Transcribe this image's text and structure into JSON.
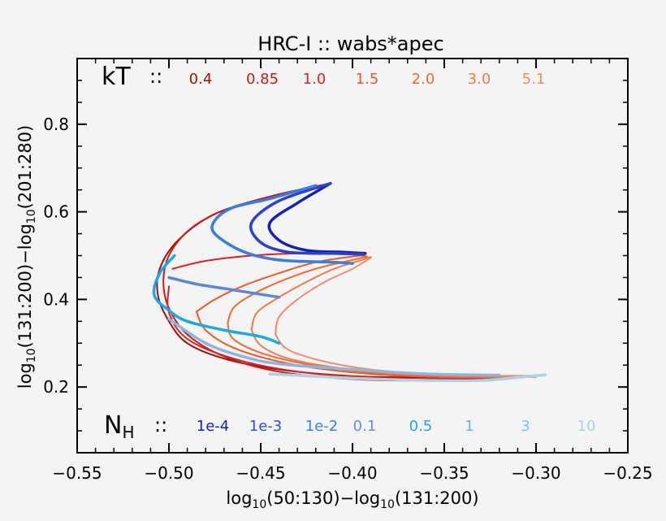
{
  "chart_data": {
    "type": "line",
    "title": "HRC-I :: wabs*apec",
    "xlabel": {
      "p1": "log",
      "s1": "10",
      "p2": "(50:130)−log",
      "s2": "10",
      "p3": "(131:200)"
    },
    "ylabel": {
      "p1": "log",
      "s1": "10",
      "p2": "(131:200)−log",
      "s2": "10",
      "p3": "(201:280)"
    },
    "xlim": [
      -0.55,
      -0.25
    ],
    "ylim": [
      0.05,
      0.95
    ],
    "x_ticks": [
      "−0.55",
      "−0.50",
      "−0.45",
      "−0.40",
      "−0.35",
      "−0.30",
      "−0.25"
    ],
    "y_ticks": [
      "0.2",
      "0.4",
      "0.6",
      "0.8"
    ],
    "grid": false,
    "legend_kT": {
      "prefix": "kT",
      "sep": "::",
      "entries": [
        {
          "label": "0.4",
          "color": "#9b0f0f"
        },
        {
          "label": "0.85",
          "color": "#c81919"
        },
        {
          "label": "1.0",
          "color": "#e01f1f"
        },
        {
          "label": "1.5",
          "color": "#ee5a22"
        },
        {
          "label": "2.0",
          "color": "#f06a30"
        },
        {
          "label": "3.0",
          "color": "#f07a4a"
        },
        {
          "label": "5.1",
          "color": "#f48a6a"
        }
      ]
    },
    "legend_NH": {
      "prefix": "N",
      "prefix_sub": "H",
      "sep": "::",
      "entries": [
        {
          "label": "1e-4",
          "color": "#1422b4"
        },
        {
          "label": "1e-3",
          "color": "#3050d8"
        },
        {
          "label": "1e-2",
          "color": "#3a7ce0"
        },
        {
          "label": "0.1",
          "color": "#6a8cdc"
        },
        {
          "label": "0.5",
          "color": "#1aa8e8"
        },
        {
          "label": "1",
          "color": "#5ab4ec"
        },
        {
          "label": "3",
          "color": "#7cc4ec"
        },
        {
          "label": "10",
          "color": "#a8d4e8"
        }
      ]
    },
    "series_kT": [
      {
        "color": "#9b0f0f",
        "width": 2,
        "points": [
          [
            -0.412,
            0.665
          ],
          [
            -0.445,
            0.635
          ],
          [
            -0.475,
            0.595
          ],
          [
            -0.495,
            0.535
          ],
          [
            -0.505,
            0.47
          ],
          [
            -0.506,
            0.41
          ],
          [
            -0.5,
            0.35
          ],
          [
            -0.49,
            0.3
          ],
          [
            -0.47,
            0.265
          ],
          [
            -0.44,
            0.24
          ],
          [
            -0.4,
            0.225
          ],
          [
            -0.36,
            0.222
          ],
          [
            -0.33,
            0.223
          ]
        ]
      },
      {
        "color": "#c81919",
        "width": 2,
        "points": [
          [
            -0.412,
            0.665
          ],
          [
            -0.44,
            0.64
          ],
          [
            -0.46,
            0.615
          ],
          [
            -0.475,
            0.595
          ],
          [
            -0.49,
            0.555
          ],
          [
            -0.5,
            0.5
          ],
          [
            -0.503,
            0.44
          ],
          [
            -0.5,
            0.38
          ],
          [
            -0.49,
            0.32
          ],
          [
            -0.47,
            0.27
          ],
          [
            -0.44,
            0.235
          ],
          [
            -0.4,
            0.218
          ],
          [
            -0.36,
            0.215
          ],
          [
            -0.33,
            0.22
          ]
        ]
      },
      {
        "color": "#e01f1f",
        "width": 2,
        "points": [
          [
            -0.498,
            0.47
          ],
          [
            -0.48,
            0.488
          ],
          [
            -0.455,
            0.5
          ],
          [
            -0.43,
            0.505
          ],
          [
            -0.405,
            0.505
          ],
          [
            -0.395,
            0.5
          ]
        ]
      },
      {
        "color": "#e01f1f",
        "width": 2,
        "points": [
          [
            -0.5,
            0.43
          ],
          [
            -0.5,
            0.37
          ],
          [
            -0.49,
            0.31
          ],
          [
            -0.465,
            0.265
          ],
          [
            -0.43,
            0.235
          ],
          [
            -0.39,
            0.222
          ],
          [
            -0.35,
            0.218
          ],
          [
            -0.31,
            0.222
          ]
        ]
      },
      {
        "color": "#ee5a22",
        "width": 2,
        "points": [
          [
            -0.485,
            0.372
          ],
          [
            -0.475,
            0.4
          ],
          [
            -0.46,
            0.43
          ],
          [
            -0.44,
            0.46
          ],
          [
            -0.42,
            0.485
          ],
          [
            -0.4,
            0.498
          ],
          [
            -0.393,
            0.5
          ]
        ]
      },
      {
        "color": "#ee5a22",
        "width": 2,
        "points": [
          [
            -0.485,
            0.372
          ],
          [
            -0.48,
            0.33
          ],
          [
            -0.465,
            0.29
          ],
          [
            -0.44,
            0.258
          ],
          [
            -0.41,
            0.238
          ],
          [
            -0.375,
            0.226
          ],
          [
            -0.34,
            0.222
          ],
          [
            -0.31,
            0.223
          ]
        ]
      },
      {
        "color": "#f06a30",
        "width": 2,
        "points": [
          [
            -0.468,
            0.345
          ],
          [
            -0.465,
            0.38
          ],
          [
            -0.455,
            0.41
          ],
          [
            -0.44,
            0.44
          ],
          [
            -0.42,
            0.47
          ],
          [
            -0.4,
            0.49
          ],
          [
            -0.392,
            0.498
          ]
        ]
      },
      {
        "color": "#f06a30",
        "width": 2,
        "points": [
          [
            -0.468,
            0.345
          ],
          [
            -0.465,
            0.31
          ],
          [
            -0.45,
            0.278
          ],
          [
            -0.425,
            0.252
          ],
          [
            -0.395,
            0.235
          ],
          [
            -0.36,
            0.226
          ],
          [
            -0.33,
            0.222
          ],
          [
            -0.3,
            0.223
          ]
        ]
      },
      {
        "color": "#f07a4a",
        "width": 2,
        "points": [
          [
            -0.455,
            0.33
          ],
          [
            -0.452,
            0.37
          ],
          [
            -0.44,
            0.405
          ],
          [
            -0.425,
            0.44
          ],
          [
            -0.41,
            0.47
          ],
          [
            -0.395,
            0.49
          ],
          [
            -0.39,
            0.497
          ]
        ]
      },
      {
        "color": "#f07a4a",
        "width": 2,
        "points": [
          [
            -0.455,
            0.33
          ],
          [
            -0.45,
            0.295
          ],
          [
            -0.435,
            0.265
          ],
          [
            -0.41,
            0.245
          ],
          [
            -0.38,
            0.232
          ],
          [
            -0.35,
            0.226
          ],
          [
            -0.32,
            0.224
          ],
          [
            -0.3,
            0.225
          ]
        ]
      },
      {
        "color": "#f48a6a",
        "width": 2,
        "points": [
          [
            -0.442,
            0.32
          ],
          [
            -0.44,
            0.36
          ],
          [
            -0.43,
            0.4
          ],
          [
            -0.415,
            0.44
          ],
          [
            -0.4,
            0.47
          ],
          [
            -0.39,
            0.495
          ]
        ]
      },
      {
        "color": "#f48a6a",
        "width": 2,
        "points": [
          [
            -0.442,
            0.32
          ],
          [
            -0.435,
            0.285
          ],
          [
            -0.415,
            0.258
          ],
          [
            -0.39,
            0.24
          ],
          [
            -0.36,
            0.23
          ],
          [
            -0.33,
            0.226
          ],
          [
            -0.3,
            0.226
          ]
        ]
      }
    ],
    "series_NH": [
      {
        "color": "#1422b4",
        "width": 3.5,
        "points": [
          [
            -0.412,
            0.665
          ],
          [
            -0.43,
            0.62
          ],
          [
            -0.445,
            0.575
          ],
          [
            -0.44,
            0.535
          ],
          [
            -0.425,
            0.512
          ],
          [
            -0.405,
            0.508
          ],
          [
            -0.393,
            0.505
          ]
        ]
      },
      {
        "color": "#2a40d0",
        "width": 3.5,
        "points": [
          [
            -0.412,
            0.665
          ],
          [
            -0.44,
            0.625
          ],
          [
            -0.455,
            0.575
          ],
          [
            -0.45,
            0.53
          ],
          [
            -0.435,
            0.508
          ],
          [
            -0.41,
            0.505
          ],
          [
            -0.394,
            0.503
          ]
        ]
      },
      {
        "color": "#3a7ce0",
        "width": 3.5,
        "points": [
          [
            -0.42,
            0.66
          ],
          [
            -0.445,
            0.63
          ],
          [
            -0.465,
            0.61
          ],
          [
            -0.475,
            0.58
          ],
          [
            -0.475,
            0.55
          ],
          [
            -0.46,
            0.51
          ],
          [
            -0.44,
            0.49
          ],
          [
            -0.41,
            0.485
          ],
          [
            -0.4,
            0.482
          ]
        ]
      },
      {
        "color": "#5a86dc",
        "width": 3.5,
        "points": [
          [
            -0.5,
            0.45
          ],
          [
            -0.485,
            0.435
          ],
          [
            -0.47,
            0.425
          ],
          [
            -0.455,
            0.415
          ],
          [
            -0.44,
            0.405
          ]
        ]
      },
      {
        "color": "#1aa8e8",
        "width": 3.5,
        "points": [
          [
            -0.497,
            0.5
          ],
          [
            -0.505,
            0.46
          ],
          [
            -0.508,
            0.41
          ],
          [
            -0.5,
            0.375
          ],
          [
            -0.49,
            0.35
          ],
          [
            -0.47,
            0.33
          ],
          [
            -0.45,
            0.315
          ],
          [
            -0.44,
            0.3
          ]
        ]
      },
      {
        "color": "#8ab4e4",
        "width": 3.5,
        "points": [
          [
            -0.5,
            0.355
          ],
          [
            -0.48,
            0.3
          ],
          [
            -0.46,
            0.27
          ],
          [
            -0.44,
            0.253
          ],
          [
            -0.4,
            0.24
          ],
          [
            -0.36,
            0.23
          ],
          [
            -0.32,
            0.227
          ]
        ]
      },
      {
        "color": "#a8d4e8",
        "width": 3.5,
        "points": [
          [
            -0.445,
            0.23
          ],
          [
            -0.4,
            0.22
          ],
          [
            -0.36,
            0.215
          ],
          [
            -0.33,
            0.215
          ],
          [
            -0.31,
            0.222
          ],
          [
            -0.295,
            0.228
          ]
        ]
      }
    ]
  }
}
